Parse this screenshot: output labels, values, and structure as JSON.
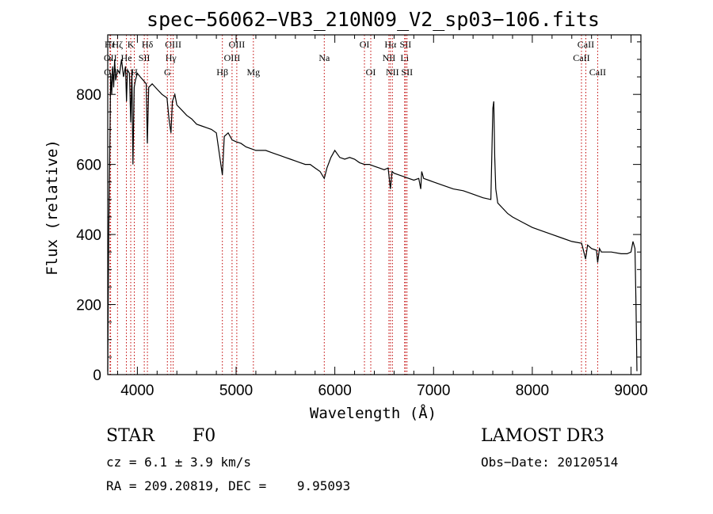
{
  "chart_data": {
    "type": "line",
    "title": "spec−56062−VB3_210N09_V2_sp03−106.fits",
    "xlabel": "Wavelength (Å)",
    "ylabel": "Flux (relative)",
    "xlim": [
      3700,
      9100
    ],
    "ylim": [
      0,
      970
    ],
    "xticks": [
      4000,
      5000,
      6000,
      7000,
      8000,
      9000
    ],
    "xtick_labels": [
      "4000",
      "5000",
      "6000",
      "7000",
      "8000",
      "9000"
    ],
    "yticks": [
      0,
      200,
      400,
      600,
      800
    ],
    "ytick_labels": [
      "0",
      "200",
      "400",
      "600",
      "800"
    ],
    "series": [
      {
        "name": "spectrum",
        "points": [
          [
            3700,
            10
          ],
          [
            3710,
            400
          ],
          [
            3720,
            620
          ],
          [
            3730,
            860
          ],
          [
            3740,
            800
          ],
          [
            3750,
            880
          ],
          [
            3760,
            820
          ],
          [
            3770,
            900
          ],
          [
            3780,
            840
          ],
          [
            3800,
            870
          ],
          [
            3820,
            860
          ],
          [
            3840,
            900
          ],
          [
            3860,
            850
          ],
          [
            3880,
            880
          ],
          [
            3890,
            780
          ],
          [
            3900,
            870
          ],
          [
            3920,
            860
          ],
          [
            3933,
            720
          ],
          [
            3945,
            870
          ],
          [
            3955,
            600
          ],
          [
            3968,
            820
          ],
          [
            3980,
            840
          ],
          [
            4000,
            860
          ],
          [
            4030,
            850
          ],
          [
            4060,
            840
          ],
          [
            4090,
            830
          ],
          [
            4101,
            660
          ],
          [
            4115,
            820
          ],
          [
            4150,
            830
          ],
          [
            4200,
            815
          ],
          [
            4250,
            800
          ],
          [
            4300,
            790
          ],
          [
            4320,
            730
          ],
          [
            4340,
            690
          ],
          [
            4355,
            780
          ],
          [
            4380,
            800
          ],
          [
            4400,
            770
          ],
          [
            4450,
            755
          ],
          [
            4500,
            740
          ],
          [
            4550,
            730
          ],
          [
            4600,
            715
          ],
          [
            4650,
            710
          ],
          [
            4700,
            705
          ],
          [
            4750,
            700
          ],
          [
            4800,
            690
          ],
          [
            4861,
            570
          ],
          [
            4880,
            680
          ],
          [
            4920,
            690
          ],
          [
            4960,
            670
          ],
          [
            5000,
            665
          ],
          [
            5050,
            660
          ],
          [
            5100,
            650
          ],
          [
            5150,
            645
          ],
          [
            5200,
            640
          ],
          [
            5250,
            640
          ],
          [
            5300,
            640
          ],
          [
            5350,
            635
          ],
          [
            5400,
            630
          ],
          [
            5450,
            625
          ],
          [
            5500,
            620
          ],
          [
            5550,
            615
          ],
          [
            5600,
            610
          ],
          [
            5650,
            605
          ],
          [
            5700,
            600
          ],
          [
            5750,
            600
          ],
          [
            5800,
            590
          ],
          [
            5850,
            580
          ],
          [
            5893,
            560
          ],
          [
            5920,
            590
          ],
          [
            5960,
            620
          ],
          [
            6000,
            640
          ],
          [
            6050,
            620
          ],
          [
            6100,
            615
          ],
          [
            6150,
            620
          ],
          [
            6200,
            615
          ],
          [
            6250,
            605
          ],
          [
            6300,
            600
          ],
          [
            6350,
            600
          ],
          [
            6400,
            595
          ],
          [
            6450,
            590
          ],
          [
            6500,
            585
          ],
          [
            6540,
            590
          ],
          [
            6563,
            530
          ],
          [
            6580,
            580
          ],
          [
            6600,
            575
          ],
          [
            6650,
            570
          ],
          [
            6700,
            565
          ],
          [
            6750,
            560
          ],
          [
            6800,
            555
          ],
          [
            6850,
            560
          ],
          [
            6870,
            530
          ],
          [
            6880,
            580
          ],
          [
            6900,
            560
          ],
          [
            6950,
            555
          ],
          [
            7000,
            550
          ],
          [
            7100,
            540
          ],
          [
            7200,
            530
          ],
          [
            7300,
            525
          ],
          [
            7400,
            515
          ],
          [
            7500,
            505
          ],
          [
            7580,
            500
          ],
          [
            7600,
            760
          ],
          [
            7610,
            780
          ],
          [
            7620,
            620
          ],
          [
            7630,
            530
          ],
          [
            7650,
            490
          ],
          [
            7700,
            475
          ],
          [
            7750,
            460
          ],
          [
            7800,
            450
          ],
          [
            7900,
            435
          ],
          [
            8000,
            420
          ],
          [
            8100,
            410
          ],
          [
            8200,
            400
          ],
          [
            8300,
            390
          ],
          [
            8400,
            380
          ],
          [
            8500,
            375
          ],
          [
            8540,
            330
          ],
          [
            8560,
            370
          ],
          [
            8600,
            360
          ],
          [
            8650,
            355
          ],
          [
            8662,
            320
          ],
          [
            8680,
            360
          ],
          [
            8700,
            350
          ],
          [
            8800,
            350
          ],
          [
            8900,
            345
          ],
          [
            8960,
            345
          ],
          [
            9000,
            350
          ],
          [
            9020,
            380
          ],
          [
            9040,
            360
          ],
          [
            9050,
            200
          ],
          [
            9060,
            10
          ]
        ]
      }
    ],
    "lines": [
      {
        "name": "Hε",
        "wavelength": 3723,
        "row": 0
      },
      {
        "name": "OII",
        "wavelength": 3727,
        "row": 1
      },
      {
        "name": "OII",
        "wavelength": 3729,
        "row": 2
      },
      {
        "name": "Hζ",
        "wavelength": 3799,
        "row": 0
      },
      {
        "name": "K",
        "wavelength": 3933,
        "row": 0
      },
      {
        "name": "He",
        "wavelength": 3889,
        "row": 1
      },
      {
        "name": "H",
        "wavelength": 3969,
        "row": 2
      },
      {
        "name": "SII",
        "wavelength": 4070,
        "row": 1
      },
      {
        "name": "Hδ",
        "wavelength": 4102,
        "row": 0
      },
      {
        "name": "OIII",
        "wavelength": 4363,
        "row": 0
      },
      {
        "name": "Hγ",
        "wavelength": 4340,
        "row": 1
      },
      {
        "name": "G",
        "wavelength": 4304,
        "row": 2
      },
      {
        "name": "Hβ",
        "wavelength": 4861,
        "row": 2
      },
      {
        "name": "OIII",
        "wavelength": 5007,
        "row": 0
      },
      {
        "name": "OIII",
        "wavelength": 4959,
        "row": 1
      },
      {
        "name": "Mg",
        "wavelength": 5175,
        "row": 2
      },
      {
        "name": "Na",
        "wavelength": 5893,
        "row": 1
      },
      {
        "name": "OI",
        "wavelength": 6300,
        "row": 0
      },
      {
        "name": "OI",
        "wavelength": 6364,
        "row": 2
      },
      {
        "name": "Hα",
        "wavelength": 6563,
        "row": 0
      },
      {
        "name": "NII",
        "wavelength": 6548,
        "row": 1
      },
      {
        "name": "NII",
        "wavelength": 6583,
        "row": 2
      },
      {
        "name": "SII",
        "wavelength": 6716,
        "row": 0
      },
      {
        "name": "Li",
        "wavelength": 6707,
        "row": 1
      },
      {
        "name": "SII",
        "wavelength": 6731,
        "row": 2
      },
      {
        "name": "CaII",
        "wavelength": 8542,
        "row": 0
      },
      {
        "name": "CaII",
        "wavelength": 8498,
        "row": 1
      },
      {
        "name": "CaII",
        "wavelength": 8662,
        "row": 2
      }
    ]
  },
  "footer": {
    "class_label": "STAR",
    "subclass": "F0",
    "redshift": "cz = 6.1 ± 3.9 km/s",
    "coords": "RA = 209.20819, DEC =    9.95093",
    "survey": "LAMOST DR3",
    "obs_date": "Obs−Date: 20120514"
  }
}
